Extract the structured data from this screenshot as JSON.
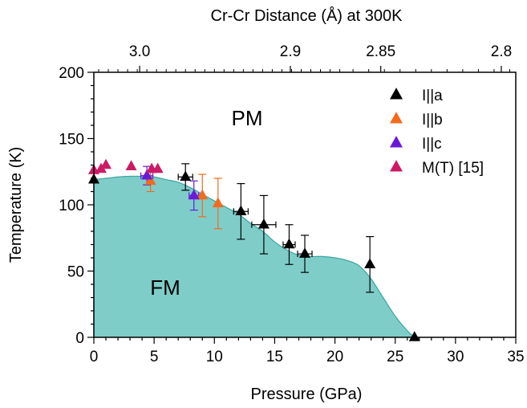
{
  "chart_data": {
    "type": "scatter",
    "title": "",
    "xlabel": "Pressure (GPa)",
    "ylabel": "Temperature (K)",
    "top_axis_label": "Cr-Cr Distance (Å) at 300K",
    "xlim": [
      0,
      35
    ],
    "ylim": [
      0,
      200
    ],
    "x_ticks": [
      "0",
      "5",
      "10",
      "15",
      "20",
      "25",
      "30",
      "35"
    ],
    "y_ticks": [
      "0",
      "50",
      "100",
      "150",
      "200"
    ],
    "top_ticks": [
      {
        "label": "3.0",
        "pressure": 3.8
      },
      {
        "label": "2.9",
        "pressure": 16.3
      },
      {
        "label": "2.85",
        "pressure": 23.8
      },
      {
        "label": "2.8",
        "pressure": 33.8
      }
    ],
    "legend_position": "top-right",
    "region_labels": {
      "upper": "PM",
      "lower": "FM"
    },
    "phase_boundary": {
      "fill_color": "#7ecdc9",
      "x": [
        0,
        1,
        2,
        3,
        4,
        5,
        6,
        7,
        8,
        9,
        10,
        11,
        12,
        13,
        14,
        15,
        16,
        17,
        18,
        19,
        20,
        21,
        22,
        23,
        24,
        25,
        26,
        26.6
      ],
      "y": [
        119,
        120,
        121,
        121.5,
        121.5,
        121,
        119,
        117,
        113,
        108,
        103,
        98,
        93,
        86,
        80,
        72,
        66,
        62,
        61,
        61,
        60,
        58,
        54,
        44,
        30,
        16,
        5,
        0
      ]
    },
    "series": [
      {
        "name": "I||a",
        "color": "#000000",
        "points": [
          {
            "x": 0,
            "y": 119,
            "yerr": 0,
            "xerr": 0
          },
          {
            "x": 7.6,
            "y": 121,
            "yerr": 10,
            "xerr": 0.6
          },
          {
            "x": 12.2,
            "y": 95,
            "yerr": 21,
            "xerr": 0.6
          },
          {
            "x": 14.1,
            "y": 85,
            "yerr": 22,
            "xerr": 1.0
          },
          {
            "x": 16.2,
            "y": 70,
            "yerr": 15,
            "xerr": 0.5
          },
          {
            "x": 17.5,
            "y": 63,
            "yerr": 14,
            "xerr": 0.6
          },
          {
            "x": 22.9,
            "y": 55,
            "yerr": 21,
            "xerr": 0
          },
          {
            "x": 26.6,
            "y": 0,
            "yerr": 0,
            "xerr": 0
          }
        ]
      },
      {
        "name": "I||b",
        "color": "#f26b1d",
        "points": [
          {
            "x": 4.7,
            "y": 118,
            "yerr": 8,
            "xerr": 0
          },
          {
            "x": 9.0,
            "y": 107,
            "yerr": 16,
            "xerr": 0
          },
          {
            "x": 10.3,
            "y": 101,
            "yerr": 19,
            "xerr": 0
          }
        ]
      },
      {
        "name": "I||c",
        "color": "#6a1ad6",
        "points": [
          {
            "x": 4.4,
            "y": 122,
            "yerr": 7,
            "xerr": 0.5
          },
          {
            "x": 8.3,
            "y": 107,
            "yerr": 11,
            "xerr": 0.4
          }
        ]
      },
      {
        "name": "M(T) [15]",
        "color": "#cc1a66",
        "points": [
          {
            "x": 0,
            "y": 126
          },
          {
            "x": 0.6,
            "y": 127
          },
          {
            "x": 1.0,
            "y": 130
          },
          {
            "x": 3.1,
            "y": 129
          },
          {
            "x": 4.8,
            "y": 127
          },
          {
            "x": 5.3,
            "y": 127
          }
        ]
      }
    ]
  }
}
